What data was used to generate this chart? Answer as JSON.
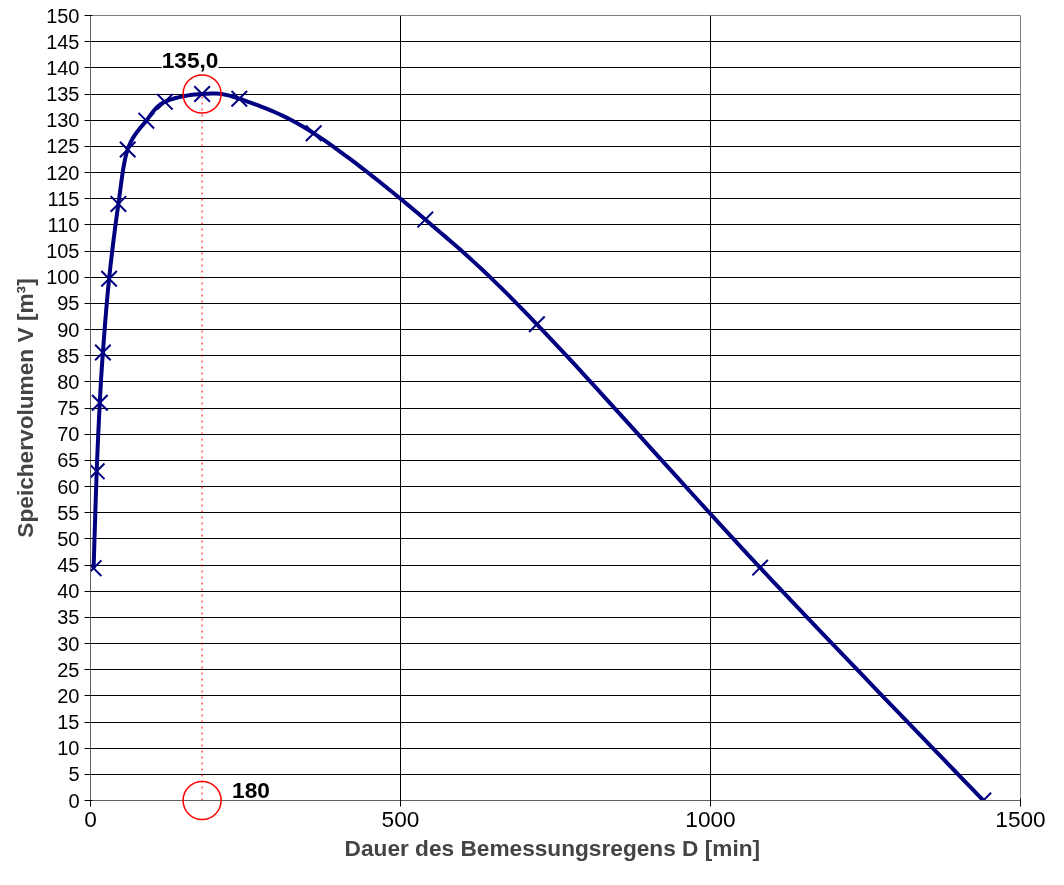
{
  "chart_data": {
    "type": "line",
    "xlabel": "Dauer des Bemessungsregens  D [min]",
    "ylabel": "Speichervolumen V [m³]",
    "x": [
      5,
      10,
      15,
      20,
      30,
      45,
      60,
      90,
      120,
      180,
      240,
      360,
      540,
      720,
      1080,
      1440
    ],
    "series": [
      {
        "color": "#000080",
        "values": [
          44.4,
          62.9,
          76,
          85.6,
          99.7,
          114,
          124.4,
          129.9,
          133.5,
          135,
          134.1,
          127.5,
          111,
          91,
          44.5,
          0
        ]
      }
    ],
    "xlim": [
      0,
      1500
    ],
    "ylim": [
      0,
      150
    ],
    "xticks": [
      0,
      500,
      1000,
      1500
    ],
    "yticks": [
      0,
      5,
      10,
      15,
      20,
      25,
      30,
      35,
      40,
      45,
      50,
      55,
      60,
      65,
      70,
      75,
      80,
      85,
      90,
      95,
      100,
      105,
      110,
      115,
      120,
      125,
      130,
      135,
      140,
      145,
      150
    ],
    "grid": true,
    "marker": "cross",
    "line_style": "solid",
    "ref_lines": [
      {
        "axis": "x",
        "value": 180,
        "color": "#ff0000",
        "line_style": "dotted"
      }
    ],
    "annotations": [
      {
        "text": "135,0",
        "x": 180,
        "y": 135
      },
      {
        "text": "180",
        "x": 180,
        "y": 0
      }
    ]
  }
}
